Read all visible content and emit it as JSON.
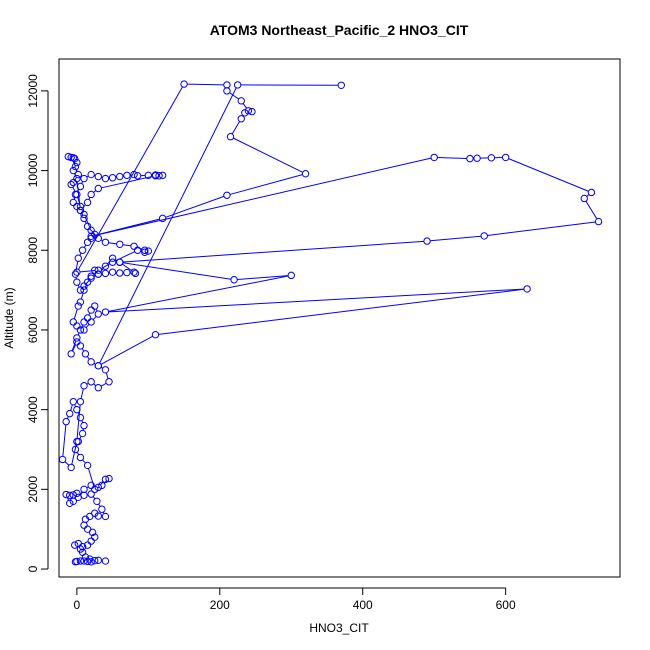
{
  "chart_data": {
    "type": "scatter",
    "title": "ATOM3 Northeast_Pacific_2 HNO3_CIT",
    "xlabel": "HNO3_CIT",
    "ylabel": "Altitude (m)",
    "xlim": [
      -25,
      760
    ],
    "ylim": [
      -200,
      12800
    ],
    "x_ticks": [
      0,
      200,
      400,
      600
    ],
    "y_ticks": [
      0,
      2000,
      4000,
      6000,
      8000,
      10000,
      12000
    ],
    "grid": false,
    "legend": "none",
    "line_color": "#0000ff",
    "marker_color": "#0000ff",
    "series": [
      {
        "points": [
          [
            40,
            200
          ],
          [
            30,
            220
          ],
          [
            20,
            180
          ],
          [
            10,
            200
          ],
          [
            0,
            190
          ],
          [
            -2,
            180
          ],
          [
            5,
            200
          ],
          [
            15,
            190
          ],
          [
            25,
            210
          ],
          [
            18,
            250
          ],
          [
            12,
            300
          ],
          [
            8,
            420
          ],
          [
            5,
            500
          ],
          [
            -3,
            600
          ],
          [
            2,
            640
          ],
          [
            8,
            560
          ],
          [
            15,
            600
          ],
          [
            20,
            700
          ],
          [
            25,
            800
          ],
          [
            22,
            920
          ],
          [
            15,
            1000
          ],
          [
            10,
            1100
          ],
          [
            12,
            1250
          ],
          [
            18,
            1320
          ],
          [
            25,
            1400
          ],
          [
            30,
            1330
          ],
          [
            40,
            1320
          ],
          [
            35,
            1500
          ],
          [
            28,
            1700
          ],
          [
            20,
            1880
          ],
          [
            10,
            1850
          ],
          [
            0,
            1900
          ],
          [
            -5,
            1860
          ],
          [
            -10,
            1850
          ],
          [
            -15,
            1870
          ],
          [
            -10,
            1650
          ],
          [
            -5,
            1700
          ],
          [
            2,
            1800
          ],
          [
            10,
            2000
          ],
          [
            20,
            2100
          ],
          [
            30,
            2050
          ],
          [
            40,
            2250
          ],
          [
            45,
            2270
          ],
          [
            35,
            2100
          ],
          [
            25,
            2000
          ],
          [
            15,
            2600
          ],
          [
            5,
            2800
          ],
          [
            -2,
            3000
          ],
          [
            2,
            3200
          ],
          [
            8,
            3400
          ],
          [
            10,
            3600
          ],
          [
            5,
            3800
          ],
          [
            0,
            4000
          ],
          [
            -5,
            4200
          ],
          [
            -10,
            3900
          ],
          [
            -15,
            3700
          ],
          [
            -20,
            2750
          ],
          [
            -8,
            2550
          ],
          [
            0,
            3200
          ],
          [
            5,
            4200
          ],
          [
            10,
            4600
          ],
          [
            20,
            4700
          ],
          [
            30,
            4550
          ],
          [
            45,
            4700
          ],
          [
            40,
            5000
          ],
          [
            30,
            5100
          ],
          [
            20,
            5200
          ],
          [
            12,
            5400
          ],
          [
            5,
            5600
          ],
          [
            0,
            5700
          ],
          [
            -8,
            5400
          ],
          [
            0,
            5800
          ],
          [
            5,
            6000
          ],
          [
            10,
            6200
          ],
          [
            15,
            6300
          ],
          [
            20,
            6500
          ],
          [
            25,
            6600
          ],
          [
            30,
            6400
          ],
          [
            20,
            6200
          ],
          [
            10,
            6000
          ],
          [
            0,
            6100
          ],
          [
            -5,
            6200
          ],
          [
            2,
            6600
          ],
          [
            5,
            6700
          ],
          [
            10,
            7000
          ],
          [
            15,
            7200
          ],
          [
            20,
            7350
          ],
          [
            25,
            7500
          ],
          [
            30,
            7400
          ],
          [
            40,
            7420
          ],
          [
            50,
            7450
          ],
          [
            60,
            7430
          ],
          [
            70,
            7440
          ],
          [
            80,
            7450
          ],
          [
            82,
            7420
          ],
          [
            60,
            7700
          ],
          [
            50,
            7800
          ],
          [
            40,
            7600
          ],
          [
            30,
            7400
          ],
          [
            20,
            7300
          ],
          [
            10,
            7100
          ],
          [
            5,
            7000
          ],
          [
            0,
            7200
          ],
          [
            -2,
            7400
          ],
          [
            2,
            7800
          ],
          [
            8,
            8000
          ],
          [
            15,
            8200
          ],
          [
            20,
            8300
          ],
          [
            25,
            8400
          ],
          [
            15,
            8600
          ],
          [
            10,
            8800
          ],
          [
            5,
            9000
          ],
          [
            0,
            9100
          ],
          [
            -5,
            9200
          ],
          [
            -2,
            9400
          ],
          [
            5,
            9600
          ],
          [
            10,
            9800
          ],
          [
            20,
            9900
          ],
          [
            30,
            9850
          ],
          [
            40,
            9800
          ],
          [
            50,
            9820
          ],
          [
            60,
            9850
          ],
          [
            70,
            9880
          ],
          [
            80,
            9900
          ],
          [
            85,
            9870
          ],
          [
            100,
            9880
          ],
          [
            110,
            9890
          ],
          [
            115,
            9870
          ],
          [
            120,
            9880
          ],
          [
            110,
            9870
          ],
          [
            30,
            9550
          ],
          [
            20,
            9400
          ],
          [
            15,
            9200
          ],
          [
            5,
            9000
          ],
          [
            0,
            9800
          ],
          [
            -5,
            10000
          ],
          [
            0,
            10200
          ],
          [
            -3,
            10300
          ],
          [
            -8,
            10330
          ],
          [
            -12,
            10350
          ],
          [
            -5,
            10320
          ],
          [
            -2,
            10100
          ],
          [
            2,
            9900
          ],
          [
            -5,
            9700
          ],
          [
            -8,
            9650
          ],
          [
            0,
            9400
          ],
          [
            5,
            9100
          ],
          [
            10,
            8900
          ],
          [
            20,
            8500
          ],
          [
            30,
            8300
          ],
          [
            40,
            8200
          ],
          [
            60,
            8150
          ],
          [
            80,
            8100
          ],
          [
            95,
            8000
          ],
          [
            100,
            7980
          ],
          [
            95,
            7950
          ],
          [
            85,
            8000
          ],
          [
            50,
            7700
          ],
          [
            30,
            7500
          ],
          [
            0,
            7450
          ],
          [
            150,
            12170
          ],
          [
            210,
            12150
          ],
          [
            210,
            12000
          ],
          [
            230,
            11750
          ],
          [
            240,
            11500
          ],
          [
            245,
            11480
          ],
          [
            235,
            11450
          ],
          [
            230,
            11300
          ],
          [
            215,
            10850
          ],
          [
            320,
            9920
          ],
          [
            210,
            9380
          ],
          [
            120,
            8800
          ],
          [
            20,
            8350
          ],
          [
            500,
            10330
          ],
          [
            550,
            10300
          ],
          [
            560,
            10310
          ],
          [
            580,
            10320
          ],
          [
            600,
            10330
          ],
          [
            720,
            9450
          ],
          [
            710,
            9300
          ],
          [
            730,
            8720
          ],
          [
            570,
            8360
          ],
          [
            490,
            8230
          ],
          [
            60,
            7700
          ],
          [
            220,
            7260
          ],
          [
            300,
            7370
          ],
          [
            40,
            6450
          ],
          [
            630,
            7030
          ],
          [
            110,
            5880
          ],
          [
            30,
            5100
          ],
          [
            225,
            12150
          ],
          [
            370,
            12140
          ]
        ]
      }
    ]
  }
}
